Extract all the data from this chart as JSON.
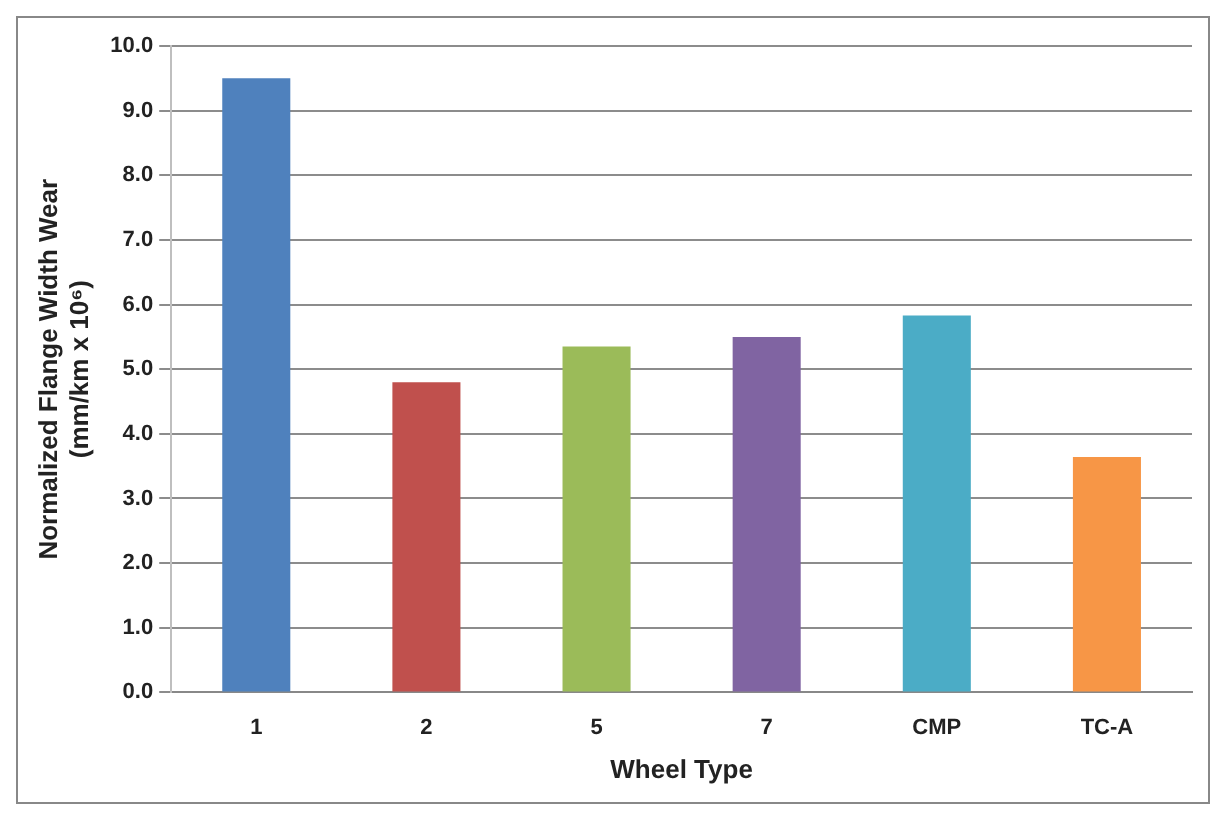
{
  "chart_data": {
    "type": "bar",
    "xlabel": "Wheel Type",
    "ylabel": "Normalized Flange Width Wear\n(mm/km x 10⁶)",
    "categories": [
      "1",
      "2",
      "5",
      "7",
      "CMP",
      "TC-A"
    ],
    "values": [
      9.5,
      4.8,
      5.35,
      5.5,
      5.83,
      3.64
    ],
    "colors": [
      "#4f81bd",
      "#c0504d",
      "#9bbb59",
      "#8064a2",
      "#4bacc6",
      "#f79646"
    ],
    "ylim": [
      0,
      10
    ],
    "yticks": [
      {
        "value": 0,
        "label": "0.0"
      },
      {
        "value": 1,
        "label": "1.0"
      },
      {
        "value": 2,
        "label": "2.0"
      },
      {
        "value": 3,
        "label": "3.0"
      },
      {
        "value": 4,
        "label": "4.0"
      },
      {
        "value": 5,
        "label": "5.0"
      },
      {
        "value": 6,
        "label": "6.0"
      },
      {
        "value": 7,
        "label": "7.0"
      },
      {
        "value": 8,
        "label": "8.0"
      },
      {
        "value": 9,
        "label": "9.0"
      },
      {
        "value": 10,
        "label": "10.0"
      }
    ],
    "grid": "y"
  }
}
